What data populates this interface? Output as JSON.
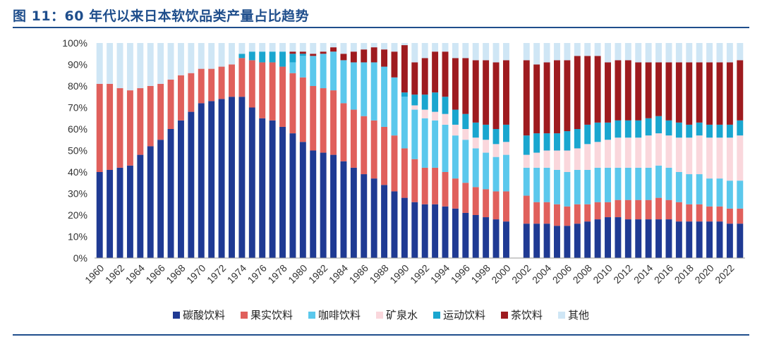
{
  "title": "图 11：60 年代以来日本软饮品类产量占比趋势",
  "chart_data": {
    "type": "bar",
    "stacked": true,
    "ylim": [
      0,
      100
    ],
    "y_ticks": [
      "0%",
      "10%",
      "20%",
      "30%",
      "40%",
      "50%",
      "60%",
      "70%",
      "80%",
      "90%",
      "100%"
    ],
    "x_tick_labels": [
      "1960",
      "1962",
      "1964",
      "1966",
      "1968",
      "1970",
      "1972",
      "1974",
      "1976",
      "1978",
      "1980",
      "1982",
      "1984",
      "1986",
      "1988",
      "1990",
      "1992",
      "1994",
      "1996",
      "1998",
      "2000",
      "2002",
      "2004",
      "2006",
      "2008",
      "2010",
      "2012",
      "2014",
      "2016",
      "2018",
      "2020",
      "2022"
    ],
    "legend_position": "bottom",
    "categories": [
      "1960",
      "1961",
      "1962",
      "1963",
      "1964",
      "1965",
      "1966",
      "1967",
      "1968",
      "1969",
      "1970",
      "1971",
      "1972",
      "1973",
      "1974",
      "1975",
      "1976",
      "1977",
      "1978",
      "1979",
      "1980",
      "1981",
      "1982",
      "1983",
      "1984",
      "1985",
      "1986",
      "1987",
      "1988",
      "1989",
      "1990",
      "1991",
      "1992",
      "1993",
      "1994",
      "1995",
      "1996",
      "1997",
      "1998",
      "1999",
      "2000",
      "2001",
      "2002",
      "2003",
      "2004",
      "2005",
      "2006",
      "2007",
      "2008",
      "2009",
      "2010",
      "2011",
      "2012",
      "2013",
      "2014",
      "2015",
      "2016",
      "2017",
      "2018",
      "2019",
      "2020",
      "2021",
      "2022",
      "2023"
    ],
    "series": [
      {
        "name": "碳酸饮料",
        "color": "#1f3a93",
        "values": [
          40,
          41,
          42,
          43,
          48,
          52,
          55,
          60,
          64,
          68,
          72,
          73,
          74,
          75,
          75,
          70,
          65,
          64,
          61,
          58,
          54,
          50,
          49,
          48,
          45,
          42,
          39,
          37,
          34,
          31,
          28,
          26,
          25,
          25,
          24,
          23,
          21,
          20,
          19,
          18,
          17,
          null,
          16,
          16,
          16,
          15,
          15,
          16,
          17,
          18,
          19,
          19,
          18,
          18,
          18,
          18,
          18,
          17,
          17,
          17,
          17,
          17,
          16,
          16
        ]
      },
      {
        "name": "果实饮料",
        "color": "#e0605c",
        "values": [
          41,
          40,
          37,
          35,
          31,
          28,
          26,
          23,
          21,
          18,
          16,
          15,
          15,
          15,
          18,
          22,
          26,
          27,
          28,
          28,
          30,
          30,
          30,
          30,
          27,
          27,
          27,
          27,
          27,
          26,
          23,
          20,
          17,
          17,
          16,
          14,
          14,
          13,
          13,
          13,
          14,
          null,
          13,
          10,
          10,
          10,
          9,
          9,
          8,
          8,
          7,
          8,
          9,
          9,
          9,
          10,
          9,
          9,
          8,
          8,
          7,
          7,
          7,
          7
        ]
      },
      {
        "name": "咖啡饮料",
        "color": "#5bc8ec",
        "values": [
          0,
          0,
          0,
          0,
          0,
          0,
          0,
          0,
          0,
          0,
          0,
          0,
          0,
          0,
          0,
          0,
          0,
          0,
          0,
          5,
          10,
          14,
          16,
          18,
          20,
          22,
          25,
          27,
          28,
          27,
          24,
          23,
          23,
          22,
          22,
          20,
          20,
          18,
          17,
          16,
          17,
          null,
          13,
          16,
          16,
          16,
          16,
          16,
          16,
          16,
          16,
          15,
          15,
          15,
          15,
          15,
          15,
          14,
          14,
          14,
          13,
          13,
          13,
          13
        ]
      },
      {
        "name": "矿泉水",
        "color": "#fad7dc",
        "values": [
          0,
          0,
          0,
          0,
          0,
          0,
          0,
          0,
          0,
          0,
          0,
          0,
          0,
          0,
          0,
          0,
          0,
          0,
          0,
          0,
          0,
          0,
          0,
          0,
          0,
          0,
          0,
          0,
          0,
          0,
          0,
          2,
          4,
          4,
          5,
          5,
          5,
          5,
          6,
          6,
          6,
          null,
          6,
          7,
          8,
          9,
          10,
          10,
          12,
          12,
          13,
          14,
          14,
          14,
          15,
          15,
          15,
          16,
          17,
          18,
          19,
          19,
          20,
          21
        ]
      },
      {
        "name": "运动饮料",
        "color": "#1aa6cf",
        "values": [
          0,
          0,
          0,
          0,
          0,
          0,
          0,
          0,
          0,
          0,
          0,
          0,
          0,
          0,
          2,
          4,
          5,
          5,
          7,
          4,
          1,
          0,
          0,
          0,
          0,
          0,
          0,
          0,
          0,
          0,
          2,
          5,
          7,
          9,
          8,
          7,
          7,
          7,
          7,
          7,
          8,
          null,
          9,
          9,
          8,
          8,
          9,
          9,
          9,
          9,
          8,
          8,
          8,
          8,
          8,
          8,
          7,
          7,
          6,
          6,
          6,
          6,
          6,
          7
        ]
      },
      {
        "name": "茶饮料",
        "color": "#9e1b1f",
        "values": [
          0,
          0,
          0,
          0,
          0,
          0,
          0,
          0,
          0,
          0,
          0,
          0,
          0,
          0,
          0,
          0,
          0,
          0,
          0,
          1,
          1,
          1,
          1,
          2,
          3,
          5,
          6,
          7,
          8,
          12,
          22,
          15,
          17,
          19,
          21,
          24,
          26,
          29,
          30,
          31,
          30,
          null,
          35,
          32,
          33,
          34,
          33,
          34,
          32,
          31,
          28,
          28,
          28,
          27,
          26,
          25,
          27,
          28,
          29,
          28,
          29,
          29,
          29,
          28
        ]
      },
      {
        "name": "其他",
        "color": "#cfe6f5",
        "values": [
          19,
          19,
          21,
          22,
          21,
          20,
          19,
          17,
          15,
          14,
          12,
          12,
          11,
          10,
          5,
          4,
          4,
          4,
          4,
          4,
          4,
          5,
          4,
          2,
          5,
          4,
          3,
          2,
          3,
          4,
          1,
          9,
          7,
          4,
          4,
          7,
          7,
          8,
          8,
          9,
          8,
          null,
          8,
          10,
          9,
          8,
          8,
          6,
          6,
          6,
          9,
          8,
          8,
          9,
          9,
          9,
          9,
          9,
          9,
          9,
          9,
          9,
          9,
          8
        ]
      }
    ]
  }
}
